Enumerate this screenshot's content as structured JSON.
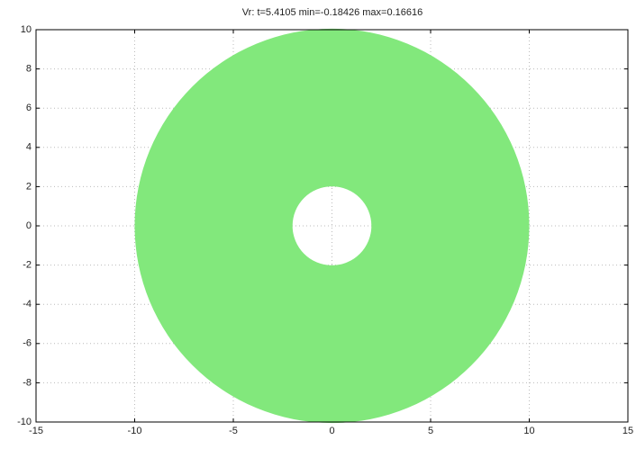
{
  "chart_data": {
    "type": "annulus",
    "title": "Vr: t=5.4105 min=-0.18426 max=0.16616",
    "center": [
      0,
      0
    ],
    "outer_radius": 10,
    "inner_radius": 2,
    "color": "#82e87c",
    "xlim": [
      -15,
      15
    ],
    "xticks": [
      -15,
      -10,
      -5,
      0,
      5,
      10,
      15
    ],
    "ylim": [
      -10,
      10
    ],
    "yticks": [
      -10,
      -8,
      -6,
      -4,
      -2,
      0,
      2,
      4,
      6,
      8,
      10
    ],
    "grid": true
  }
}
